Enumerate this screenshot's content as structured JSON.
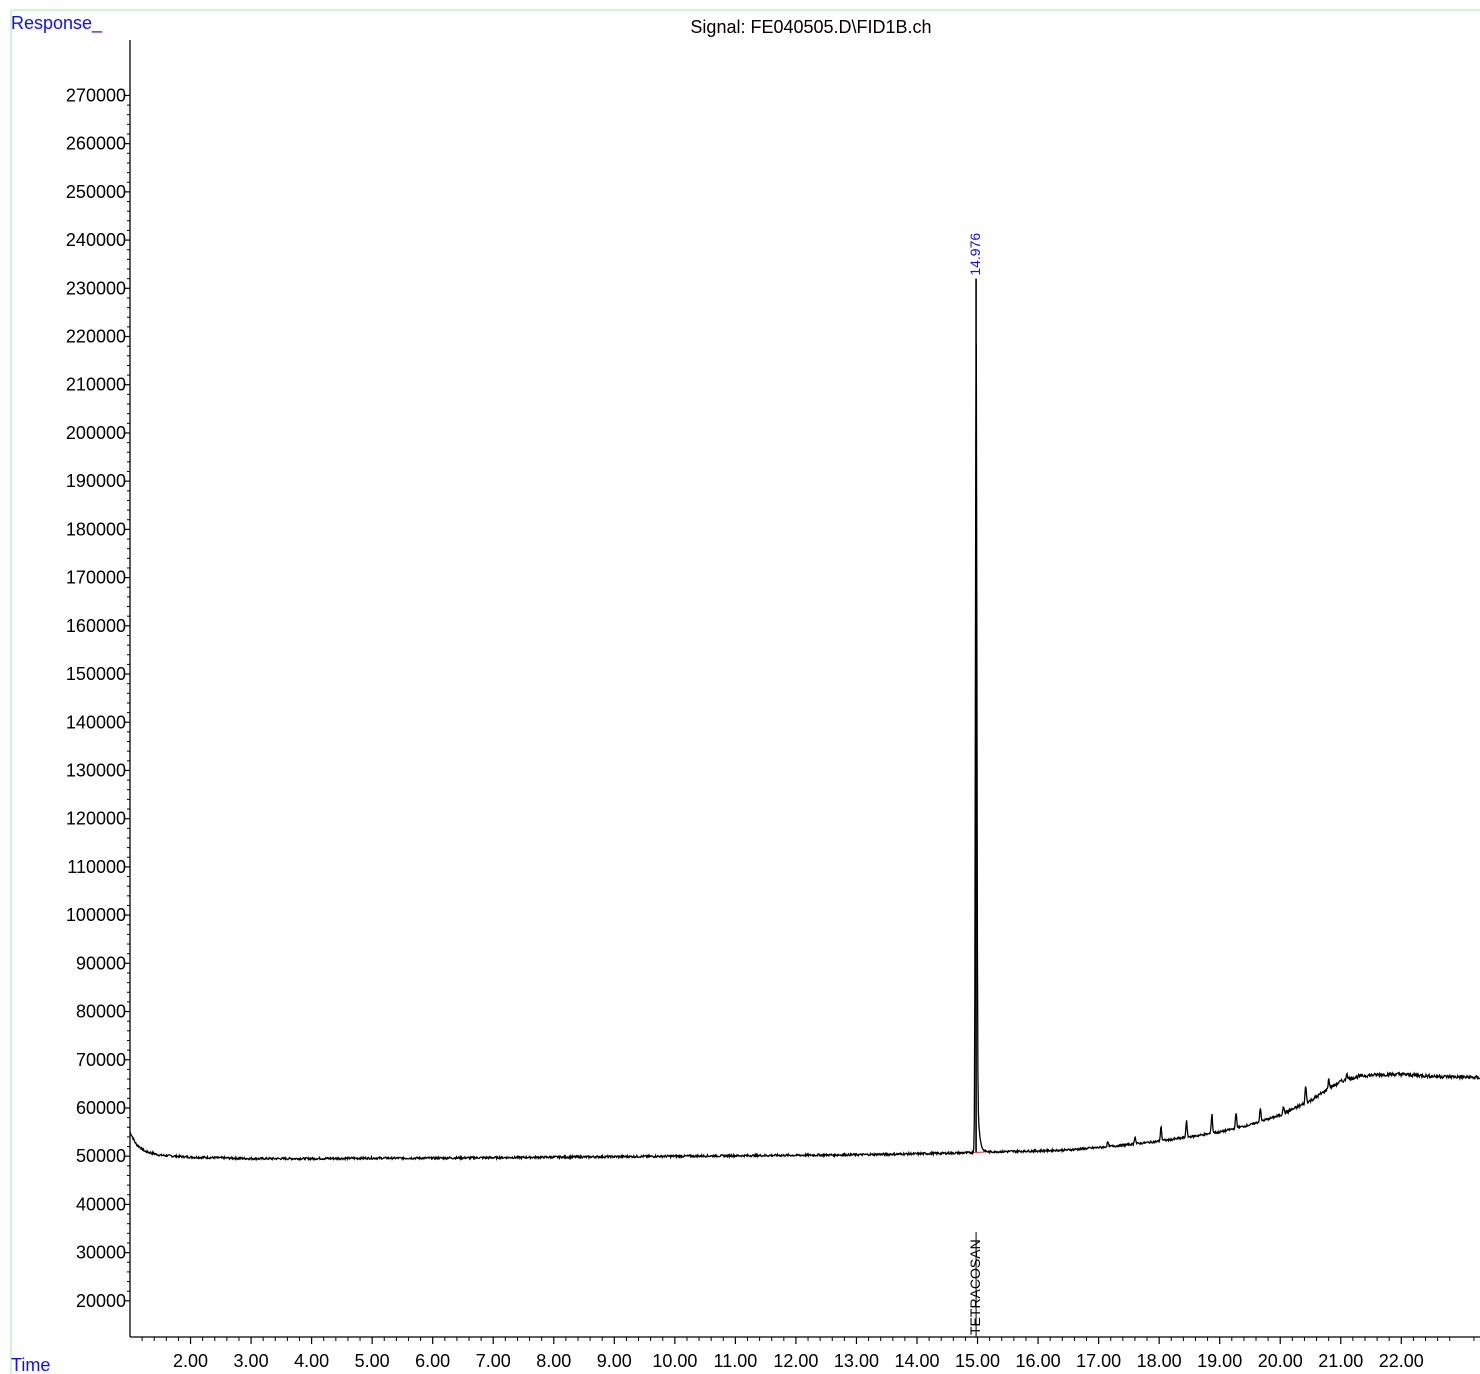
{
  "chart_data": {
    "type": "line",
    "title": "Signal: FE040505.D\\FID1B.ch",
    "ylabel": "Response_",
    "xlabel": "Time",
    "xlim": [
      1.0,
      23.3
    ],
    "ylim": [
      12500,
      281500
    ],
    "x_ticks": [
      2.0,
      3.0,
      4.0,
      5.0,
      6.0,
      7.0,
      8.0,
      9.0,
      10.0,
      11.0,
      12.0,
      13.0,
      14.0,
      15.0,
      16.0,
      17.0,
      18.0,
      19.0,
      20.0,
      21.0,
      22.0
    ],
    "x_tick_labels": [
      "2.00",
      "3.00",
      "4.00",
      "5.00",
      "6.00",
      "7.00",
      "8.00",
      "9.00",
      "10.00",
      "11.00",
      "12.00",
      "13.00",
      "14.00",
      "15.00",
      "16.00",
      "17.00",
      "18.00",
      "19.00",
      "20.00",
      "21.00",
      "22.00"
    ],
    "y_ticks": [
      20000,
      30000,
      40000,
      50000,
      60000,
      70000,
      80000,
      90000,
      100000,
      110000,
      120000,
      130000,
      140000,
      150000,
      160000,
      170000,
      180000,
      190000,
      200000,
      210000,
      220000,
      230000,
      240000,
      250000,
      260000,
      270000
    ],
    "y_tick_labels": [
      "20000",
      "30000",
      "40000",
      "50000",
      "60000",
      "70000",
      "80000",
      "90000",
      "100000",
      "110000",
      "120000",
      "130000",
      "140000",
      "150000",
      "160000",
      "170000",
      "180000",
      "190000",
      "200000",
      "210000",
      "220000",
      "230000",
      "240000",
      "250000",
      "260000",
      "270000"
    ],
    "series": [
      {
        "color": "#000000",
        "baseline": [
          [
            1.0,
            55000
          ],
          [
            1.1,
            52500
          ],
          [
            1.25,
            51000
          ],
          [
            1.5,
            50200
          ],
          [
            2.0,
            49800
          ],
          [
            3.0,
            49500
          ],
          [
            4.0,
            49500
          ],
          [
            5.0,
            49600
          ],
          [
            6.0,
            49600
          ],
          [
            7.0,
            49700
          ],
          [
            8.0,
            49800
          ],
          [
            9.0,
            49900
          ],
          [
            10.0,
            50000
          ],
          [
            11.0,
            50100
          ],
          [
            12.0,
            50200
          ],
          [
            13.0,
            50300
          ],
          [
            14.0,
            50500
          ],
          [
            14.8,
            50700
          ],
          [
            15.2,
            50900
          ],
          [
            16.0,
            51100
          ],
          [
            16.5,
            51300
          ],
          [
            17.0,
            51800
          ],
          [
            17.5,
            52400
          ],
          [
            18.0,
            53100
          ],
          [
            18.5,
            54000
          ],
          [
            19.0,
            55000
          ],
          [
            19.5,
            56500
          ],
          [
            20.0,
            58500
          ],
          [
            20.5,
            61500
          ],
          [
            20.8,
            64000
          ],
          [
            21.0,
            65500
          ],
          [
            21.3,
            66600
          ],
          [
            21.6,
            66900
          ],
          [
            22.0,
            67000
          ],
          [
            22.5,
            66600
          ],
          [
            23.3,
            66300
          ]
        ],
        "peaks": [
          {
            "x": 14.976,
            "y": 232000
          },
          {
            "x": 17.15,
            "y": 53000
          },
          {
            "x": 17.6,
            "y": 54300
          },
          {
            "x": 18.03,
            "y": 56500
          },
          {
            "x": 18.45,
            "y": 57600
          },
          {
            "x": 18.87,
            "y": 59200
          },
          {
            "x": 19.27,
            "y": 59300
          },
          {
            "x": 19.67,
            "y": 60200
          },
          {
            "x": 20.05,
            "y": 60700
          },
          {
            "x": 20.42,
            "y": 65000
          },
          {
            "x": 20.8,
            "y": 66300
          },
          {
            "x": 21.1,
            "y": 67500
          }
        ]
      }
    ],
    "annotations": [
      {
        "x": 14.976,
        "text": "14.976",
        "color": "#1010ee",
        "position": "above-peak"
      },
      {
        "x": 14.976,
        "text": "TETRACOSAN",
        "color": "#000000",
        "position": "bottom"
      }
    ],
    "grid": false,
    "legend": "none"
  }
}
